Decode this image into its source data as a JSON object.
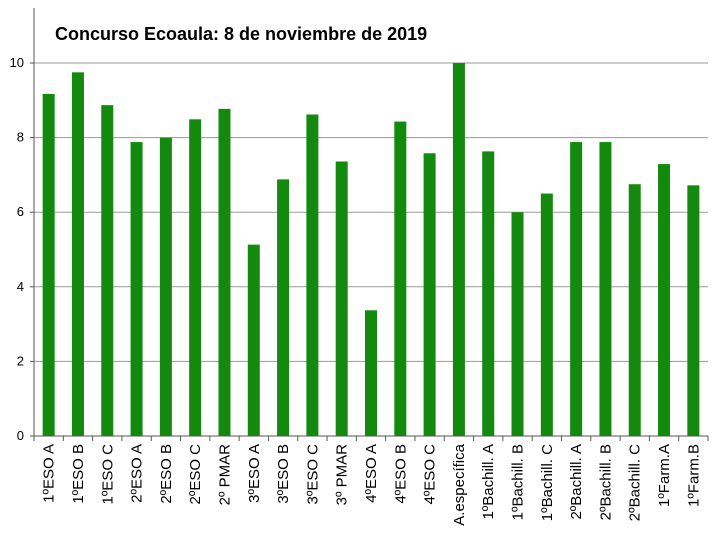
{
  "chart_data": {
    "type": "bar",
    "title": "Concurso Ecoaula: 8 de noviembre de 2019",
    "xlabel": "",
    "ylabel": "",
    "ylim": [
      0,
      10
    ],
    "yticks": [
      0,
      2,
      4,
      6,
      8,
      10
    ],
    "grid": true,
    "legend": "none",
    "bar_color": "#138a0d",
    "categories": [
      "1ºESO A",
      "1ºESO B",
      "1ºESO C",
      "2ºESO A",
      "2ºESO B",
      "2ºESO C",
      "2º PMAR",
      "3ºESO A",
      "3ºESO B",
      "3ºESO C",
      "3º PMAR",
      "4ºESO A",
      "4ºESO B",
      "4ºESO C",
      "A.específica",
      "1ºBachill. A",
      "1ºBachill. B",
      "1ºBachill. C",
      "2ºBachill. A",
      "2ºBachill. B",
      "2ºBachill. C",
      "1ºFarm.A",
      "1ºFarm.B"
    ],
    "values": [
      9.17,
      9.75,
      8.87,
      7.88,
      8.0,
      8.49,
      8.77,
      5.13,
      6.88,
      8.62,
      7.36,
      3.37,
      8.43,
      7.58,
      10.0,
      7.63,
      6.0,
      6.5,
      7.88,
      7.88,
      6.75,
      7.29,
      6.72
    ]
  }
}
